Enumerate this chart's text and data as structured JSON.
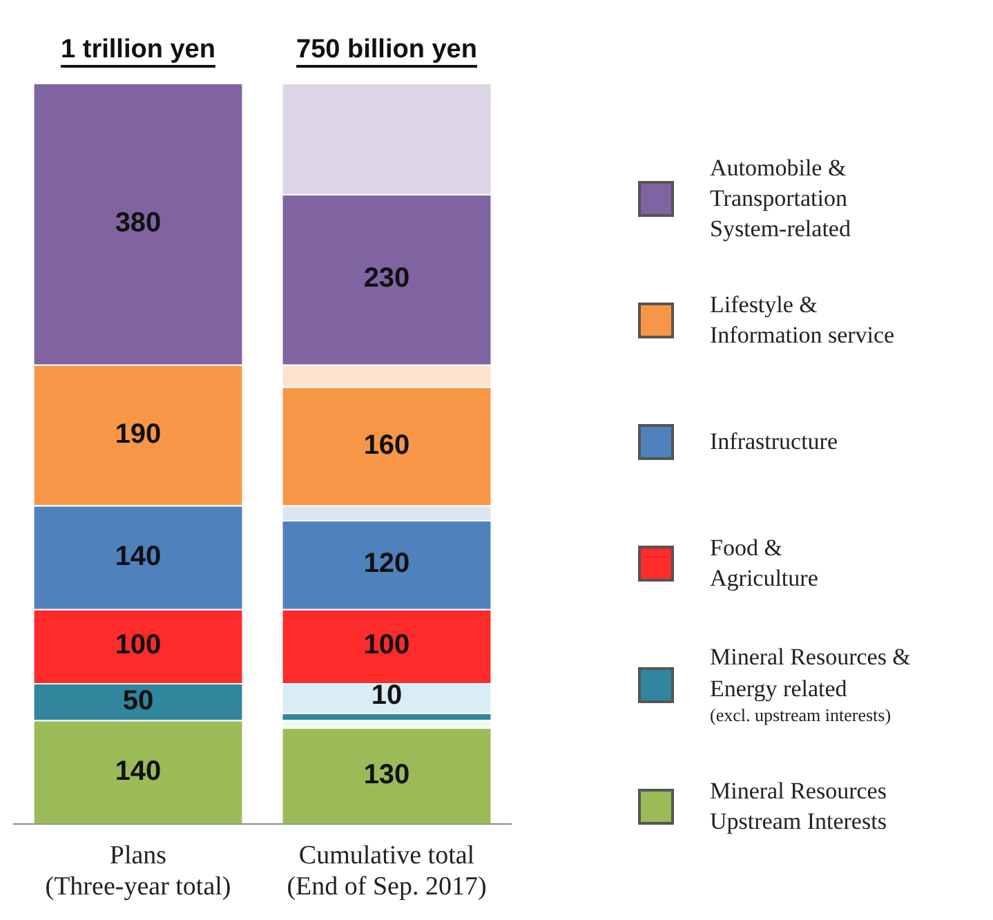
{
  "chart_data": {
    "type": "bar",
    "stacked": true,
    "tick_labels": "x",
    "legend": "right",
    "grid": false,
    "categories": [
      "Plans\n(Three-year total)",
      "Cumulative total\n(End of Sep. 2017)"
    ],
    "annotations": [
      {
        "text": "1 trillion yen",
        "x": "Plans\n(Three-year total)",
        "y": 1000
      },
      {
        "text": "750 billion yen",
        "x": "Cumulative total\n(End of Sep. 2017)",
        "y": 1000
      }
    ],
    "series": [
      {
        "name": "Mineral Resources\nUpstream Interests",
        "color": "#9bbb59",
        "values": [
          140,
          130
        ],
        "value_labels": [
          "140",
          "130"
        ]
      },
      {
        "color": "#f4f8ec",
        "values": [
          null,
          10
        ],
        "value_labels": [
          null,
          null
        ]
      },
      {
        "name": "Mineral Resources &\nEnergy related\n(excl. upstream interests)",
        "color": "#31859c",
        "values": [
          50,
          10
        ],
        "value_labels": [
          "50",
          "10"
        ]
      },
      {
        "color": "#d8eef4",
        "values": [
          null,
          40
        ],
        "value_labels": [
          null,
          null
        ]
      },
      {
        "name": "Food &\nAgriculture",
        "color": "#ff2a2a",
        "values": [
          100,
          100
        ],
        "value_labels": [
          "100",
          "100"
        ]
      },
      {
        "name": "Infrastructure",
        "color": "#4f81bd",
        "values": [
          140,
          120
        ],
        "value_labels": [
          "140",
          "120"
        ]
      },
      {
        "color": "#dce6f2",
        "values": [
          null,
          20
        ],
        "value_labels": [
          null,
          null
        ]
      },
      {
        "name": "Lifestyle &\nInformation service",
        "color": "#f79646",
        "values": [
          190,
          160
        ],
        "value_labels": [
          "190",
          "160"
        ]
      },
      {
        "color": "#fde3cf",
        "values": [
          null,
          30
        ],
        "value_labels": [
          null,
          null
        ]
      },
      {
        "name": "Automobile &\nTransportation\nSystem-related",
        "color": "#8064a2",
        "values": [
          380,
          230
        ],
        "value_labels": [
          "380",
          "230"
        ]
      },
      {
        "color": "#dcd5e6",
        "values": [
          null,
          150
        ],
        "value_labels": [
          null,
          null
        ]
      }
    ]
  }
}
